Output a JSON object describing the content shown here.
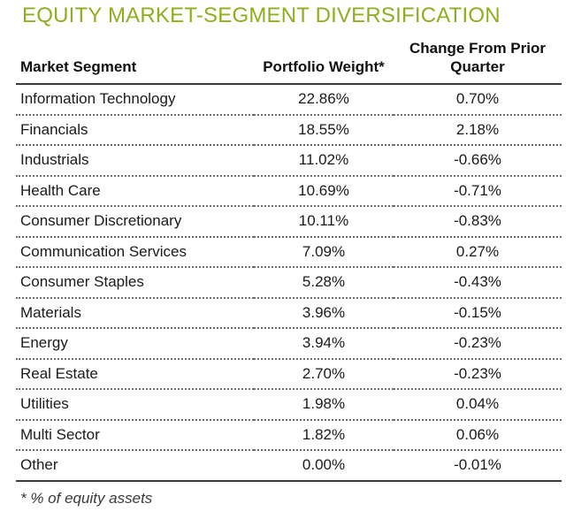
{
  "title": "EQUITY MARKET-SEGMENT DIVERSIFICATION",
  "footnote": "* % of equity assets",
  "colors": {
    "title_green": "#8FAD1E",
    "body_text": "#1A1A1A",
    "solid_rule": "#3C3C3C",
    "dotted_rule": "#6E6E6E",
    "background": "#FFFFFF"
  },
  "table": {
    "columns": {
      "segment": "Market Segment",
      "weight": "Portfolio Weight*",
      "change": "Change From Prior Quarter"
    },
    "rows": [
      {
        "segment": "Information Technology",
        "weight": "22.86%",
        "change": "0.70%"
      },
      {
        "segment": "Financials",
        "weight": "18.55%",
        "change": "2.18%"
      },
      {
        "segment": "Industrials",
        "weight": "11.02%",
        "change": "-0.66%"
      },
      {
        "segment": "Health Care",
        "weight": "10.69%",
        "change": "-0.71%"
      },
      {
        "segment": "Consumer Discretionary",
        "weight": "10.11%",
        "change": "-0.83%"
      },
      {
        "segment": "Communication Services",
        "weight": "7.09%",
        "change": "0.27%"
      },
      {
        "segment": "Consumer Staples",
        "weight": "5.28%",
        "change": "-0.43%"
      },
      {
        "segment": "Materials",
        "weight": "3.96%",
        "change": "-0.15%"
      },
      {
        "segment": "Energy",
        "weight": "3.94%",
        "change": "-0.23%"
      },
      {
        "segment": "Real Estate",
        "weight": "2.70%",
        "change": "-0.23%"
      },
      {
        "segment": "Utilities",
        "weight": "1.98%",
        "change": "0.04%"
      },
      {
        "segment": "Multi Sector",
        "weight": "1.82%",
        "change": "0.06%"
      },
      {
        "segment": "Other",
        "weight": "0.00%",
        "change": "-0.01%"
      }
    ]
  },
  "chart_data": {
    "type": "table",
    "title": "EQUITY MARKET-SEGMENT DIVERSIFICATION",
    "columns": [
      "Market Segment",
      "Portfolio Weight*",
      "Change From Prior Quarter"
    ],
    "categories": [
      "Information Technology",
      "Financials",
      "Industrials",
      "Health Care",
      "Consumer Discretionary",
      "Communication Services",
      "Consumer Staples",
      "Materials",
      "Energy",
      "Real Estate",
      "Utilities",
      "Multi Sector",
      "Other"
    ],
    "series": [
      {
        "name": "Portfolio Weight (%)",
        "values": [
          22.86,
          18.55,
          11.02,
          10.69,
          10.11,
          7.09,
          5.28,
          3.96,
          3.94,
          2.7,
          1.98,
          1.82,
          0.0
        ]
      },
      {
        "name": "Change From Prior Quarter (%)",
        "values": [
          0.7,
          2.18,
          -0.66,
          -0.71,
          -0.83,
          0.27,
          -0.43,
          -0.15,
          -0.23,
          -0.23,
          0.04,
          0.06,
          -0.01
        ]
      }
    ],
    "footnote": "* % of equity assets"
  }
}
